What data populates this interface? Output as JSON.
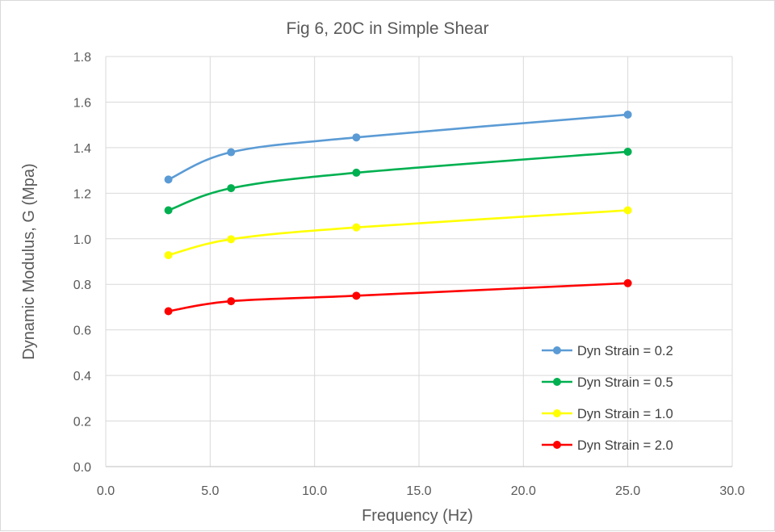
{
  "chart_data": {
    "type": "line",
    "title": "Fig 6, 20C in Simple Shear",
    "xlabel": "Frequency  (Hz)",
    "ylabel": "Dynamic Modulus, G (Mpa)",
    "xlim": [
      0,
      30
    ],
    "ylim": [
      0,
      1.8
    ],
    "x_ticks": [
      "0.0",
      "5.0",
      "10.0",
      "15.0",
      "20.0",
      "25.0",
      "30.0"
    ],
    "y_ticks": [
      "0.0",
      "0.2",
      "0.4",
      "0.6",
      "0.8",
      "1.0",
      "1.2",
      "1.4",
      "1.6",
      "1.8"
    ],
    "x_tick_values": [
      0,
      5,
      10,
      15,
      20,
      25,
      30
    ],
    "y_tick_values": [
      0,
      0.2,
      0.4,
      0.6,
      0.8,
      1.0,
      1.2,
      1.4,
      1.6,
      1.8
    ],
    "grid": true,
    "smooth": true,
    "legend_position": "bottom-right",
    "x": [
      3,
      6,
      12,
      25
    ],
    "series": [
      {
        "name": "Dyn Strain = 0.2",
        "color": "#5b9bd5",
        "values": [
          1.26,
          1.38,
          1.445,
          1.545
        ]
      },
      {
        "name": "Dyn Strain = 0.5",
        "color": "#00b050",
        "values": [
          1.125,
          1.222,
          1.29,
          1.382
        ]
      },
      {
        "name": "Dyn Strain = 1.0",
        "color": "#ffff00",
        "values": [
          0.928,
          0.998,
          1.05,
          1.125
        ]
      },
      {
        "name": "Dyn Strain = 2.0",
        "color": "#ff0000",
        "values": [
          0.682,
          0.726,
          0.75,
          0.805
        ]
      }
    ]
  }
}
